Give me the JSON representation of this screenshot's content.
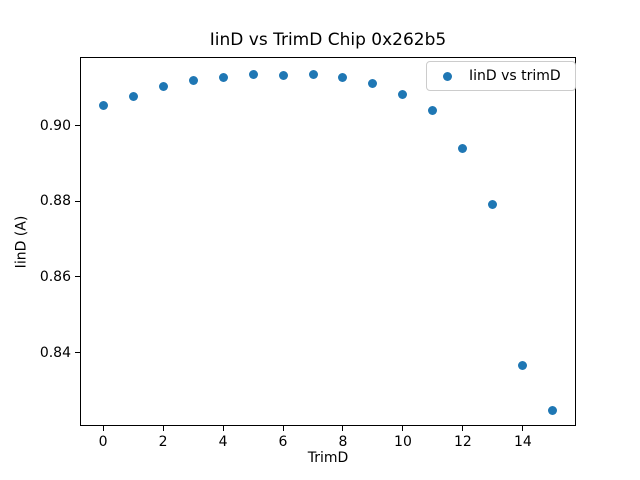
{
  "window": {
    "background_color": "#ffffff"
  },
  "chart_data": {
    "type": "scatter",
    "title": "IinD vs TrimD Chip 0x262b5",
    "xlabel": "TrimD",
    "ylabel": "IinD (A)",
    "grid": false,
    "legend_position": "upper right",
    "legend_border_color": "#cccccc",
    "xlim": [
      -0.77,
      15.77
    ],
    "ylim": [
      0.8206,
      0.9181
    ],
    "xticks": {
      "values": [
        0,
        2,
        4,
        6,
        8,
        10,
        12,
        14
      ],
      "labels": [
        "0",
        "2",
        "4",
        "6",
        "8",
        "10",
        "12",
        "14"
      ]
    },
    "yticks": {
      "values": [
        0.84,
        0.86,
        0.88,
        0.9
      ],
      "labels": [
        "0.84",
        "0.86",
        "0.88",
        "0.90"
      ]
    },
    "series": [
      {
        "name": "IinD vs trimD",
        "marker": "circle",
        "marker_color": "#1f77b4",
        "x": [
          0,
          1,
          2,
          3,
          4,
          5,
          6,
          7,
          8,
          9,
          10,
          11,
          12,
          13,
          14,
          15
        ],
        "y": [
          0.9052,
          0.9077,
          0.9102,
          0.9118,
          0.9127,
          0.9134,
          0.9132,
          0.9134,
          0.9127,
          0.911,
          0.9081,
          0.9039,
          0.8938,
          0.879,
          0.8367,
          0.8248
        ]
      }
    ]
  }
}
